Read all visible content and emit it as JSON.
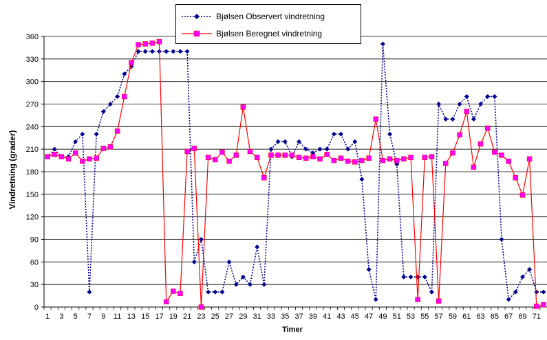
{
  "chart_data": {
    "type": "line",
    "xlabel": "Timer",
    "ylabel": "Vindretning  (grader)",
    "ylim": [
      0,
      360
    ],
    "yticks": [
      0,
      30,
      60,
      90,
      120,
      150,
      180,
      210,
      240,
      270,
      300,
      330,
      360
    ],
    "x": [
      1,
      2,
      3,
      4,
      5,
      6,
      7,
      8,
      9,
      10,
      11,
      12,
      13,
      14,
      15,
      16,
      17,
      18,
      19,
      20,
      21,
      22,
      23,
      24,
      25,
      26,
      27,
      28,
      29,
      30,
      31,
      32,
      33,
      34,
      35,
      36,
      37,
      38,
      39,
      40,
      41,
      42,
      43,
      44,
      45,
      46,
      47,
      48,
      49,
      50,
      51,
      52,
      53,
      54,
      55,
      56,
      57,
      58,
      59,
      60,
      61,
      62,
      63,
      64,
      65,
      66,
      67,
      68,
      69,
      70,
      71,
      72
    ],
    "xticks": [
      1,
      3,
      5,
      7,
      9,
      11,
      13,
      15,
      17,
      19,
      21,
      23,
      25,
      27,
      29,
      31,
      33,
      35,
      37,
      39,
      41,
      43,
      45,
      47,
      49,
      51,
      53,
      55,
      57,
      59,
      61,
      63,
      65,
      67,
      69,
      71
    ],
    "grid": "horizontal",
    "legend": "top-center",
    "series": [
      {
        "name": "Bjølsen Observert vindretning",
        "color": "#00008b",
        "style": "dotted",
        "marker": "diamond",
        "values": [
          200,
          210,
          200,
          200,
          220,
          230,
          20,
          230,
          260,
          270,
          280,
          310,
          320,
          340,
          340,
          340,
          340,
          340,
          340,
          340,
          340,
          60,
          90,
          20,
          20,
          20,
          60,
          30,
          40,
          30,
          80,
          30,
          210,
          220,
          220,
          200,
          220,
          210,
          205,
          210,
          210,
          230,
          230,
          210,
          220,
          170,
          50,
          10,
          350,
          230,
          190,
          40,
          40,
          40,
          40,
          20,
          270,
          250,
          250,
          270,
          280,
          250,
          270,
          280,
          280,
          90,
          10,
          20,
          40,
          50,
          20,
          20
        ]
      },
      {
        "name": "Bjølsen Beregnet vindretning",
        "color": "#ff0000",
        "style": "solid",
        "marker": "square",
        "marker_color": "#ff00ff",
        "values": [
          200,
          203,
          200,
          197,
          205,
          194,
          197,
          198,
          211,
          213,
          234,
          280,
          325,
          349,
          350,
          351,
          353,
          7,
          21,
          18,
          207,
          211,
          0,
          199,
          196,
          206,
          194,
          202,
          266,
          207,
          199,
          172,
          202,
          202,
          202,
          202,
          199,
          198,
          200,
          197,
          203,
          195,
          198,
          194,
          193,
          195,
          198,
          250,
          195,
          197,
          195,
          197,
          199,
          10,
          199,
          200,
          8,
          191,
          205,
          229,
          260,
          186,
          217,
          238,
          206,
          202,
          194,
          172,
          149,
          197,
          1,
          3
        ]
      }
    ]
  }
}
